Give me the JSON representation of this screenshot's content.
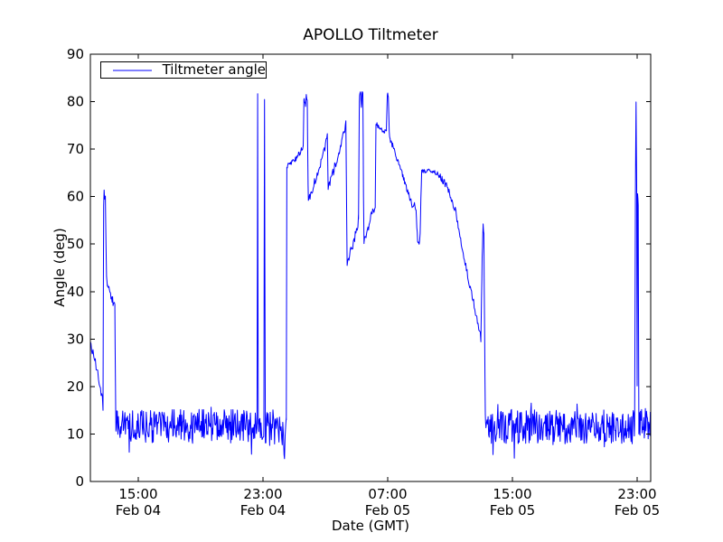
{
  "chart_data": {
    "type": "line",
    "title": "APOLLO Tiltmeter",
    "xlabel": "Date (GMT)",
    "ylabel": "Angle (deg)",
    "ylim": [
      0,
      90
    ],
    "yticks": [
      0,
      10,
      20,
      30,
      40,
      50,
      60,
      70,
      80,
      90
    ],
    "x_unit": "hours since Feb 04 00:00 GMT",
    "x_range_hours": [
      11.93,
      47.87
    ],
    "xticks": [
      {
        "hour": 15,
        "time": "15:00",
        "date": "Feb 04"
      },
      {
        "hour": 23,
        "time": "23:00",
        "date": "Feb 04"
      },
      {
        "hour": 31,
        "time": "07:00",
        "date": "Feb 05"
      },
      {
        "hour": 39,
        "time": "15:00",
        "date": "Feb 05"
      },
      {
        "hour": 47,
        "time": "23:00",
        "date": "Feb 05"
      }
    ],
    "grid": false,
    "tick_direction": "in",
    "line_color": "#0000ff",
    "axis_color": "#000000",
    "background": "#ffffff",
    "legend": {
      "position": "upper-left",
      "entries": [
        {
          "label": "Tiltmeter angle",
          "color": "#0000ff"
        }
      ]
    },
    "series": [
      {
        "name": "Tiltmeter angle",
        "segments": [
          {
            "kind": "jag",
            "pts": [
              [
                11.93,
                29.5
              ],
              [
                12.05,
                27.5
              ],
              [
                12.2,
                26
              ],
              [
                12.35,
                23.5
              ],
              [
                12.5,
                21
              ],
              [
                12.62,
                18.5
              ],
              [
                12.7,
                17
              ],
              [
                12.74,
                15.8
              ]
            ],
            "jitter": 0.9,
            "step": 0.045
          },
          {
            "kind": "jag",
            "pts": [
              [
                12.74,
                15.8
              ],
              [
                12.78,
                58
              ],
              [
                12.81,
                61.5
              ],
              [
                12.85,
                59.5
              ],
              [
                12.89,
                60.5
              ],
              [
                12.93,
                50
              ],
              [
                12.97,
                43
              ],
              [
                13.02,
                41.5
              ]
            ],
            "jitter": 0.4,
            "step": 0.02
          },
          {
            "kind": "jag",
            "pts": [
              [
                13.02,
                41.5
              ],
              [
                13.12,
                40.5
              ],
              [
                13.22,
                39.5
              ],
              [
                13.32,
                38.5
              ],
              [
                13.42,
                37.5
              ],
              [
                13.5,
                36.8
              ]
            ],
            "jitter": 0.8,
            "step": 0.03
          },
          {
            "kind": "jag",
            "pts": [
              [
                13.5,
                36.5
              ],
              [
                13.54,
                20
              ],
              [
                13.57,
                10.5
              ],
              [
                13.62,
                12.5
              ]
            ],
            "jitter": 0.3,
            "step": 0.02
          },
          {
            "kind": "noise",
            "from": 13.62,
            "to": 22.62,
            "mean": 11.6,
            "amp": 3.6,
            "step": 0.035
          },
          {
            "kind": "jag",
            "pts": [
              [
                22.62,
                12
              ],
              [
                22.66,
                81.5
              ],
              [
                22.7,
                12
              ]
            ],
            "jitter": 0.2,
            "step": 0.02
          },
          {
            "kind": "noise",
            "from": 22.7,
            "to": 23.06,
            "mean": 11.5,
            "amp": 3.2,
            "step": 0.035
          },
          {
            "kind": "jag",
            "pts": [
              [
                23.06,
                12
              ],
              [
                23.1,
                80.5
              ],
              [
                23.15,
                11.5
              ]
            ],
            "jitter": 0.2,
            "step": 0.02
          },
          {
            "kind": "noise",
            "from": 23.15,
            "to": 24.33,
            "mean": 11.3,
            "amp": 3.8,
            "step": 0.035
          },
          {
            "kind": "jag",
            "pts": [
              [
                24.33,
                8
              ],
              [
                24.38,
                4.8
              ],
              [
                24.42,
                9.5
              ],
              [
                24.46,
                12.5
              ],
              [
                24.5,
                13
              ]
            ],
            "jitter": 0.8,
            "step": 0.03
          },
          {
            "kind": "jag",
            "pts": [
              [
                24.5,
                13
              ],
              [
                24.53,
                66.3
              ],
              [
                24.62,
                66.8
              ],
              [
                24.75,
                67
              ],
              [
                24.95,
                67.6
              ],
              [
                25.15,
                68.2
              ],
              [
                25.35,
                69.2
              ],
              [
                25.5,
                70.2
              ],
              [
                25.58,
                70.6
              ]
            ],
            "jitter": 0.55,
            "step": 0.035
          },
          {
            "kind": "jag",
            "pts": [
              [
                25.58,
                70.6
              ],
              [
                25.63,
                80.8
              ],
              [
                25.68,
                80
              ],
              [
                25.73,
                79.3
              ],
              [
                25.78,
                81.2
              ],
              [
                25.84,
                80.2
              ],
              [
                25.88,
                66
              ],
              [
                25.91,
                59.2
              ]
            ],
            "jitter": 0.4,
            "step": 0.02
          },
          {
            "kind": "jag",
            "pts": [
              [
                25.91,
                59.2
              ],
              [
                26.1,
                61
              ],
              [
                26.35,
                63.5
              ],
              [
                26.6,
                66
              ],
              [
                26.85,
                68.5
              ],
              [
                27.05,
                71.5
              ],
              [
                27.13,
                72.8
              ]
            ],
            "jitter": 0.9,
            "step": 0.04
          },
          {
            "kind": "jag",
            "pts": [
              [
                27.13,
                72.8
              ],
              [
                27.18,
                61.5
              ]
            ],
            "jitter": 0.2,
            "step": 0.02
          },
          {
            "kind": "jag",
            "pts": [
              [
                27.18,
                61.5
              ],
              [
                27.45,
                64.5
              ],
              [
                27.75,
                68
              ],
              [
                28.05,
                71.5
              ],
              [
                28.25,
                74.5
              ],
              [
                28.32,
                75.7
              ]
            ],
            "jitter": 0.9,
            "step": 0.04
          },
          {
            "kind": "jag",
            "pts": [
              [
                28.32,
                75.7
              ],
              [
                28.37,
                56
              ],
              [
                28.4,
                45.5
              ]
            ],
            "jitter": 0.3,
            "step": 0.02
          },
          {
            "kind": "jag",
            "pts": [
              [
                28.4,
                45.5
              ],
              [
                28.6,
                48
              ],
              [
                28.8,
                50.5
              ],
              [
                29.0,
                53
              ],
              [
                29.13,
                55.3
              ]
            ],
            "jitter": 1.0,
            "step": 0.04
          },
          {
            "kind": "jag",
            "pts": [
              [
                29.13,
                55.3
              ],
              [
                29.18,
                80
              ],
              [
                29.22,
                82
              ],
              [
                29.27,
                81.5
              ],
              [
                29.31,
                78.5
              ],
              [
                29.36,
                81.8
              ],
              [
                29.41,
                82
              ],
              [
                29.45,
                60
              ],
              [
                29.48,
                50.3
              ]
            ],
            "jitter": 0.4,
            "step": 0.02
          },
          {
            "kind": "jag",
            "pts": [
              [
                29.48,
                50.3
              ],
              [
                29.7,
                53
              ],
              [
                29.92,
                55.5
              ],
              [
                30.12,
                57.5
              ],
              [
                30.2,
                58.6
              ]
            ],
            "jitter": 0.9,
            "step": 0.04
          },
          {
            "kind": "jag",
            "pts": [
              [
                30.2,
                58.6
              ],
              [
                30.25,
                75.3
              ],
              [
                30.4,
                74.8
              ],
              [
                30.6,
                74
              ],
              [
                30.8,
                73.6
              ],
              [
                30.92,
                74.3
              ]
            ],
            "jitter": 0.5,
            "step": 0.03
          },
          {
            "kind": "jag",
            "pts": [
              [
                30.92,
                74.3
              ],
              [
                30.98,
                81.7
              ],
              [
                31.04,
                81.3
              ],
              [
                31.1,
                73.5
              ],
              [
                31.15,
                72.3
              ]
            ],
            "jitter": 0.3,
            "step": 0.02
          },
          {
            "kind": "jag",
            "pts": [
              [
                31.15,
                72.3
              ],
              [
                31.45,
                69.5
              ],
              [
                31.75,
                66.5
              ],
              [
                32.05,
                63.5
              ],
              [
                32.35,
                60.5
              ],
              [
                32.6,
                57.8
              ],
              [
                32.72,
                58.8
              ],
              [
                32.82,
                57
              ]
            ],
            "jitter": 0.6,
            "step": 0.035
          },
          {
            "kind": "jag",
            "pts": [
              [
                32.82,
                57
              ],
              [
                32.92,
                50.5
              ],
              [
                33.02,
                49.6
              ],
              [
                33.08,
                52
              ],
              [
                33.13,
                60
              ],
              [
                33.18,
                65.6
              ]
            ],
            "jitter": 0.4,
            "step": 0.025
          },
          {
            "kind": "jag",
            "pts": [
              [
                33.18,
                65.6
              ],
              [
                33.45,
                65.3
              ],
              [
                33.75,
                65.6
              ],
              [
                34.05,
                65.2
              ],
              [
                34.3,
                64.4
              ]
            ],
            "jitter": 0.5,
            "step": 0.035
          },
          {
            "kind": "jag",
            "pts": [
              [
                34.3,
                64.4
              ],
              [
                34.6,
                63
              ],
              [
                34.85,
                61.8
              ],
              [
                35.05,
                60
              ],
              [
                35.25,
                58
              ],
              [
                35.45,
                55.5
              ],
              [
                35.6,
                52.5
              ],
              [
                35.8,
                48.5
              ],
              [
                36.05,
                44.5
              ],
              [
                36.3,
                41
              ],
              [
                36.55,
                37
              ],
              [
                36.8,
                33
              ],
              [
                36.98,
                30.2
              ]
            ],
            "jitter": 0.8,
            "step": 0.04
          },
          {
            "kind": "jag",
            "pts": [
              [
                36.98,
                30.2
              ],
              [
                37.06,
                47
              ],
              [
                37.12,
                54.2
              ],
              [
                37.17,
                52
              ],
              [
                37.22,
                30
              ],
              [
                37.26,
                14
              ],
              [
                37.3,
                11.5
              ]
            ],
            "jitter": 0.4,
            "step": 0.02
          },
          {
            "kind": "noise",
            "from": 37.3,
            "to": 46.84,
            "mean": 11.5,
            "amp": 3.6,
            "step": 0.035
          },
          {
            "kind": "jag",
            "pts": [
              [
                46.84,
                12
              ],
              [
                46.89,
                60.3
              ],
              [
                46.93,
                80.3
              ],
              [
                46.97,
                62
              ],
              [
                47.0,
                20
              ],
              [
                47.03,
                60.5
              ],
              [
                47.07,
                58
              ],
              [
                47.11,
                13
              ]
            ],
            "jitter": 0.4,
            "step": 0.02
          },
          {
            "kind": "noise",
            "from": 47.11,
            "to": 47.87,
            "mean": 12,
            "amp": 3.2,
            "step": 0.035
          }
        ]
      }
    ]
  }
}
